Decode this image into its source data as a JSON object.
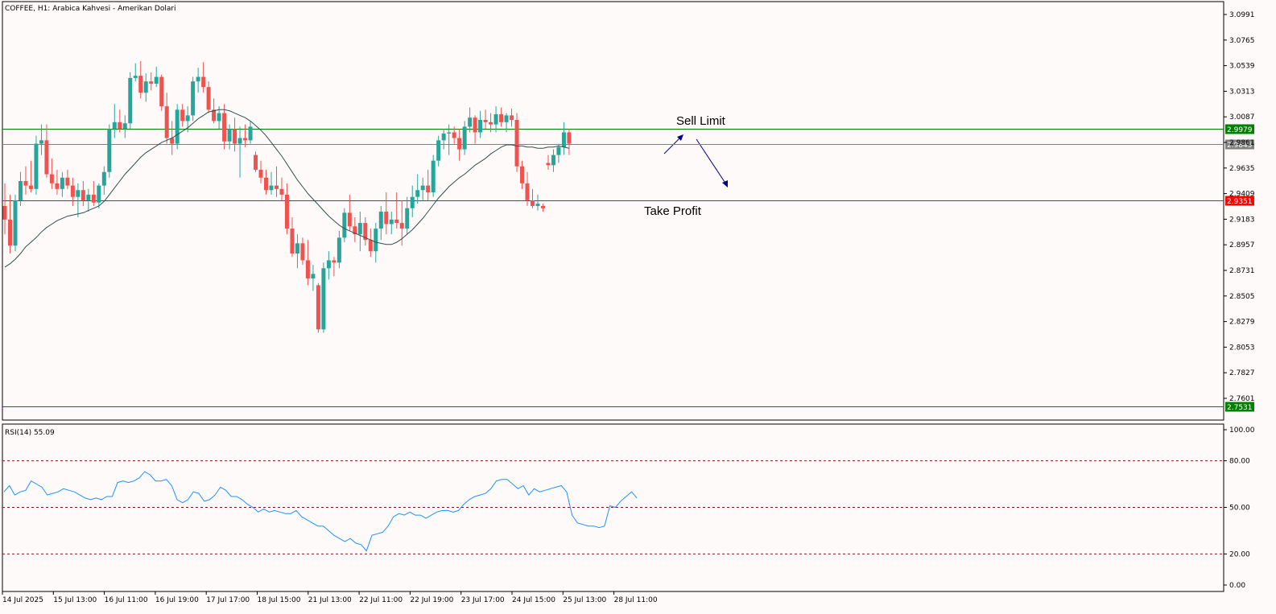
{
  "chart_data": [
    {
      "type": "candlestick",
      "title": "COFFEE, H1:  Arabica Kahvesi - Amerikan Dolari",
      "ylim": [
        2.7531,
        3.1
      ],
      "y_ticks": [
        "3.0991",
        "3.0765",
        "3.0539",
        "3.0313",
        "3.0087",
        "2.9861",
        "2.9635",
        "2.9409",
        "2.9183",
        "2.8957",
        "2.8731",
        "2.8505",
        "2.8279",
        "2.8053",
        "2.7827",
        "2.7601"
      ],
      "x_ticks": [
        "14 Jul 2025",
        "15 Jul 13:00",
        "16 Jul 11:00",
        "16 Jul 19:00",
        "17 Jul 17:00",
        "18 Jul 15:00",
        "21 Jul 13:00",
        "22 Jul 11:00",
        "22 Jul 19:00",
        "23 Jul 17:00",
        "24 Jul 15:00",
        "25 Jul 13:00",
        "28 Jul 11:00"
      ],
      "colors": {
        "up": "#26a69a",
        "down": "#ef5350",
        "ma": "#2f4f4f",
        "background": "#fffafa"
      },
      "ohlc": [
        [
          2.93,
          2.95,
          2.905,
          2.918
        ],
        [
          2.918,
          2.94,
          2.888,
          2.895
        ],
        [
          2.895,
          2.94,
          2.89,
          2.935
        ],
        [
          2.935,
          2.96,
          2.93,
          2.952
        ],
        [
          2.952,
          2.965,
          2.94,
          2.948
        ],
        [
          2.948,
          2.97,
          2.942,
          2.945
        ],
        [
          2.945,
          2.992,
          2.94,
          2.985
        ],
        [
          2.985,
          3.002,
          2.975,
          2.988
        ],
        [
          2.988,
          3.002,
          2.955,
          2.958
        ],
        [
          2.958,
          2.972,
          2.945,
          2.95
        ],
        [
          2.95,
          2.962,
          2.94,
          2.945
        ],
        [
          2.945,
          2.96,
          2.938,
          2.955
        ],
        [
          2.955,
          2.962,
          2.945,
          2.948
        ],
        [
          2.948,
          2.955,
          2.93,
          2.938
        ],
        [
          2.938,
          2.95,
          2.92,
          2.944
        ],
        [
          2.944,
          2.952,
          2.93,
          2.935
        ],
        [
          2.935,
          2.945,
          2.925,
          2.94
        ],
        [
          2.94,
          2.952,
          2.93,
          2.933
        ],
        [
          2.933,
          2.95,
          2.928,
          2.948
        ],
        [
          2.948,
          2.965,
          2.94,
          2.96
        ],
        [
          2.96,
          3.002,
          2.955,
          2.998
        ],
        [
          2.998,
          3.02,
          2.99,
          3.004
        ],
        [
          3.004,
          3.015,
          2.995,
          2.998
        ],
        [
          2.998,
          3.01,
          2.99,
          3.003
        ],
        [
          3.003,
          3.048,
          2.998,
          3.043
        ],
        [
          3.043,
          3.056,
          3.04,
          3.045
        ],
        [
          3.045,
          3.058,
          3.025,
          3.03
        ],
        [
          3.03,
          3.047,
          3.022,
          3.04
        ],
        [
          3.04,
          3.048,
          3.032,
          3.038
        ],
        [
          3.038,
          3.053,
          3.035,
          3.044
        ],
        [
          3.044,
          3.046,
          3.014,
          3.018
        ],
        [
          3.018,
          3.03,
          2.985,
          2.99
        ],
        [
          2.99,
          3.005,
          2.975,
          2.985
        ],
        [
          2.985,
          3.02,
          2.98,
          3.015
        ],
        [
          3.015,
          3.02,
          3.0,
          3.005
        ],
        [
          3.005,
          3.018,
          2.995,
          3.01
        ],
        [
          3.01,
          3.044,
          3.005,
          3.04
        ],
        [
          3.04,
          3.052,
          3.03,
          3.044
        ],
        [
          3.044,
          3.057,
          3.03,
          3.035
        ],
        [
          3.035,
          3.04,
          3.012,
          3.015
        ],
        [
          3.015,
          3.025,
          3.003,
          3.005
        ],
        [
          3.005,
          3.018,
          2.998,
          3.012
        ],
        [
          3.012,
          3.02,
          2.98,
          2.987
        ],
        [
          2.987,
          3.002,
          2.98,
          2.998
        ],
        [
          2.998,
          3.008,
          2.978,
          2.985
        ],
        [
          2.985,
          3.0,
          2.955,
          2.99
        ],
        [
          2.99,
          3.002,
          2.982,
          2.988
        ],
        [
          2.988,
          3.005,
          2.985,
          3.0
        ],
        [
          2.975,
          2.978,
          2.96,
          2.962
        ],
        [
          2.962,
          2.97,
          2.95,
          2.955
        ],
        [
          2.955,
          2.962,
          2.94,
          2.944
        ],
        [
          2.944,
          2.96,
          2.94,
          2.948
        ],
        [
          2.948,
          2.965,
          2.938,
          2.945
        ],
        [
          2.945,
          2.955,
          2.935,
          2.94
        ],
        [
          2.94,
          2.95,
          2.905,
          2.91
        ],
        [
          2.91,
          2.92,
          2.885,
          2.888
        ],
        [
          2.888,
          2.905,
          2.875,
          2.897
        ],
        [
          2.897,
          2.902,
          2.878,
          2.882
        ],
        [
          2.882,
          2.9,
          2.86,
          2.866
        ],
        [
          2.866,
          2.878,
          2.855,
          2.87
        ],
        [
          2.86,
          2.862,
          2.818,
          2.821
        ],
        [
          2.821,
          2.88,
          2.818,
          2.875
        ],
        [
          2.875,
          2.89,
          2.865,
          2.882
        ],
        [
          2.882,
          2.885,
          2.868,
          2.88
        ],
        [
          2.88,
          2.908,
          2.875,
          2.902
        ],
        [
          2.902,
          2.928,
          2.898,
          2.924
        ],
        [
          2.924,
          2.94,
          2.908,
          2.912
        ],
        [
          2.912,
          2.92,
          2.898,
          2.905
        ],
        [
          2.905,
          2.925,
          2.89,
          2.915
        ],
        [
          2.915,
          2.92,
          2.895,
          2.9
        ],
        [
          2.9,
          2.91,
          2.885,
          2.89
        ],
        [
          2.89,
          2.915,
          2.88,
          2.91
        ],
        [
          2.91,
          2.93,
          2.9,
          2.925
        ],
        [
          2.925,
          2.942,
          2.905,
          2.914
        ],
        [
          2.914,
          2.925,
          2.905,
          2.918
        ],
        [
          2.918,
          2.942,
          2.91,
          2.915
        ],
        [
          2.915,
          2.935,
          2.895,
          2.91
        ],
        [
          2.91,
          2.938,
          2.905,
          2.928
        ],
        [
          2.928,
          2.948,
          2.92,
          2.938
        ],
        [
          2.938,
          2.958,
          2.932,
          2.944
        ],
        [
          2.944,
          2.955,
          2.935,
          2.948
        ],
        [
          2.948,
          2.962,
          2.935,
          2.942
        ],
        [
          2.942,
          2.975,
          2.938,
          2.97
        ],
        [
          2.97,
          2.992,
          2.965,
          2.988
        ],
        [
          2.988,
          2.998,
          2.98,
          2.994
        ],
        [
          2.994,
          3.002,
          2.975,
          2.995
        ],
        [
          2.995,
          3.0,
          2.985,
          2.99
        ],
        [
          2.99,
          2.998,
          2.97,
          2.98
        ],
        [
          2.98,
          3.005,
          2.975,
          3.0
        ],
        [
          3.0,
          3.017,
          2.995,
          3.008
        ],
        [
          3.008,
          3.01,
          2.985,
          2.995
        ],
        [
          2.995,
          3.014,
          2.99,
          3.006
        ],
        [
          3.006,
          3.015,
          2.998,
          3.004
        ],
        [
          3.004,
          3.012,
          2.995,
          3.002
        ],
        [
          3.002,
          3.018,
          2.995,
          3.011
        ],
        [
          3.011,
          3.017,
          3.0,
          3.004
        ],
        [
          3.004,
          3.012,
          2.995,
          3.01
        ],
        [
          3.01,
          3.016,
          3.0,
          3.006
        ],
        [
          3.006,
          3.012,
          2.96,
          2.965
        ],
        [
          2.965,
          2.97,
          2.945,
          2.95
        ],
        [
          2.95,
          2.96,
          2.93,
          2.935
        ],
        [
          2.935,
          2.945,
          2.928,
          2.93
        ],
        [
          2.93,
          2.94,
          2.926,
          2.932
        ],
        [
          2.93,
          2.932,
          2.925,
          2.928
        ],
        [
          2.968,
          2.975,
          2.962,
          2.966
        ],
        [
          2.966,
          2.98,
          2.96,
          2.975
        ],
        [
          2.975,
          2.985,
          2.968,
          2.982
        ],
        [
          2.982,
          3.004,
          2.975,
          2.995
        ],
        [
          2.995,
          2.998,
          2.975,
          2.985
        ]
      ],
      "moving_average": [
        2.876,
        2.879,
        2.883,
        2.888,
        2.894,
        2.898,
        2.902,
        2.907,
        2.911,
        2.914,
        2.917,
        2.919,
        2.921,
        2.922,
        2.923,
        2.924,
        2.926,
        2.928,
        2.93,
        2.934,
        2.94,
        2.946,
        2.952,
        2.958,
        2.963,
        2.968,
        2.973,
        2.977,
        2.98,
        2.983,
        2.986,
        2.988,
        2.99,
        2.993,
        2.996,
        2.999,
        3.003,
        3.007,
        3.01,
        3.013,
        3.014,
        3.015,
        3.015,
        3.014,
        3.012,
        3.01,
        3.008,
        3.005,
        3.001,
        2.997,
        2.992,
        2.986,
        2.98,
        2.974,
        2.967,
        2.96,
        2.953,
        2.947,
        2.941,
        2.936,
        2.931,
        2.926,
        2.921,
        2.917,
        2.913,
        2.91,
        2.908,
        2.906,
        2.904,
        2.902,
        2.9,
        2.898,
        2.897,
        2.896,
        2.896,
        2.898,
        2.901,
        2.905,
        2.909,
        2.914,
        2.919,
        2.925,
        2.931,
        2.937,
        2.942,
        2.947,
        2.951,
        2.955,
        2.958,
        2.962,
        2.966,
        2.969,
        2.972,
        2.976,
        2.979,
        2.982,
        2.984,
        2.984,
        2.983,
        2.983,
        2.982,
        2.982,
        2.981,
        2.981,
        2.982,
        2.982,
        2.983,
        2.982,
        2.981
      ],
      "horizontal_lines": [
        {
          "value": 2.9979,
          "color": "#008000",
          "label": "2.9979"
        },
        {
          "value": 2.9845,
          "color": "#808080",
          "label": "2.9845"
        },
        {
          "value": 2.9351,
          "color": "#ff0000",
          "label": "2.9351"
        },
        {
          "value": 2.7531,
          "color": "#008000",
          "label": "2.7531"
        }
      ],
      "annotations": [
        "Sell Limit",
        "Take Profit"
      ]
    },
    {
      "type": "line",
      "title": "RSI(14) 55.09",
      "ylim": [
        0,
        100
      ],
      "y_ticks": [
        "100.00",
        "80.00",
        "50.00",
        "20.00",
        "0.00"
      ],
      "levels": [
        80,
        50,
        20
      ],
      "series": [
        {
          "color": "#1e90ff",
          "values": [
            60,
            64,
            58,
            60,
            61,
            67,
            65,
            63,
            58,
            59,
            60,
            62,
            61,
            60,
            58,
            56,
            55,
            56,
            55,
            57,
            57,
            66,
            67,
            66,
            67,
            69,
            73,
            71,
            67,
            67,
            68,
            64,
            55,
            53,
            55,
            60,
            59,
            54,
            55,
            58,
            63,
            61,
            57,
            57,
            55,
            52,
            50,
            47,
            49,
            47,
            48,
            47,
            46,
            46,
            48,
            44,
            42,
            40,
            38,
            38,
            35,
            32,
            30,
            28,
            30,
            27,
            26,
            22,
            32,
            33,
            34,
            38,
            44,
            46,
            45,
            47,
            45,
            45,
            43,
            45,
            47,
            48,
            48,
            47,
            48,
            52,
            55,
            57,
            58,
            59,
            62,
            67,
            68,
            68,
            65,
            62,
            64,
            58,
            62,
            60,
            61,
            62,
            63,
            64,
            60,
            45,
            40,
            39,
            38,
            38,
            37,
            38,
            51,
            50,
            54,
            57,
            60,
            56
          ]
        }
      ]
    }
  ]
}
